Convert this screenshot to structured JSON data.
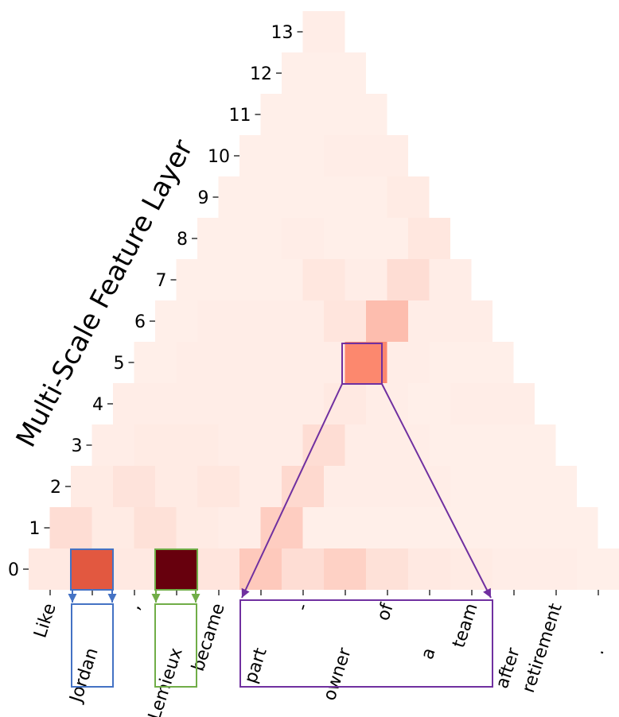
{
  "chart_data": {
    "type": "heatmap",
    "ylabel": "Multi-Scale Feature Layer",
    "tokens": [
      "Like",
      "Jordan",
      ",",
      "Lemieux",
      "became",
      "part",
      "-",
      "owner",
      "of",
      "a",
      "team",
      "after",
      "retirement",
      "."
    ],
    "layers": [
      0,
      1,
      2,
      3,
      4,
      5,
      6,
      7,
      8,
      9,
      10,
      11,
      12,
      13
    ],
    "values": [
      [
        0.06,
        0.75,
        0.06,
        1.0,
        0.08,
        0.22,
        0.12,
        0.18,
        0.1,
        0.06,
        0.05,
        0.04,
        0.04,
        0.03
      ],
      [
        0.12,
        0.05,
        0.1,
        0.05,
        0.04,
        0.2,
        0.03,
        0.03,
        0.03,
        0.03,
        0.03,
        0.03,
        0.03
      ],
      [
        0.05,
        0.09,
        0.05,
        0.07,
        0.04,
        0.14,
        0.04,
        0.04,
        0.04,
        0.03,
        0.03,
        0.03
      ],
      [
        0.04,
        0.05,
        0.05,
        0.04,
        0.04,
        0.12,
        0.04,
        0.04,
        0.03,
        0.03,
        0.03
      ],
      [
        0.04,
        0.04,
        0.04,
        0.04,
        0.04,
        0.06,
        0.04,
        0.03,
        0.04,
        0.04
      ],
      [
        0.03,
        0.04,
        0.04,
        0.04,
        0.04,
        0.55,
        0.04,
        0.03,
        0.03
      ],
      [
        0.03,
        0.04,
        0.04,
        0.04,
        0.08,
        0.28,
        0.04,
        0.04
      ],
      [
        0.03,
        0.03,
        0.03,
        0.07,
        0.04,
        0.12,
        0.04
      ],
      [
        0.03,
        0.03,
        0.04,
        0.03,
        0.03,
        0.07
      ],
      [
        0.03,
        0.03,
        0.03,
        0.03,
        0.05
      ],
      [
        0.03,
        0.03,
        0.04,
        0.04
      ],
      [
        0.03,
        0.03,
        0.03
      ],
      [
        0.03,
        0.03
      ],
      [
        0.04
      ]
    ],
    "highlight": {
      "layer": 5,
      "index": 5,
      "span_tokens": [
        "part",
        "-",
        "owner",
        "of",
        "a",
        "team"
      ]
    },
    "boxed_tokens": [
      "Jordan",
      "Lemieux"
    ],
    "colors": {
      "low": "#fff5f0",
      "mid": "#fb6a4a",
      "high": "#67000d",
      "blue_box": "#4472c4",
      "green_box": "#70ad47",
      "purple_box": "#7030a0"
    }
  }
}
